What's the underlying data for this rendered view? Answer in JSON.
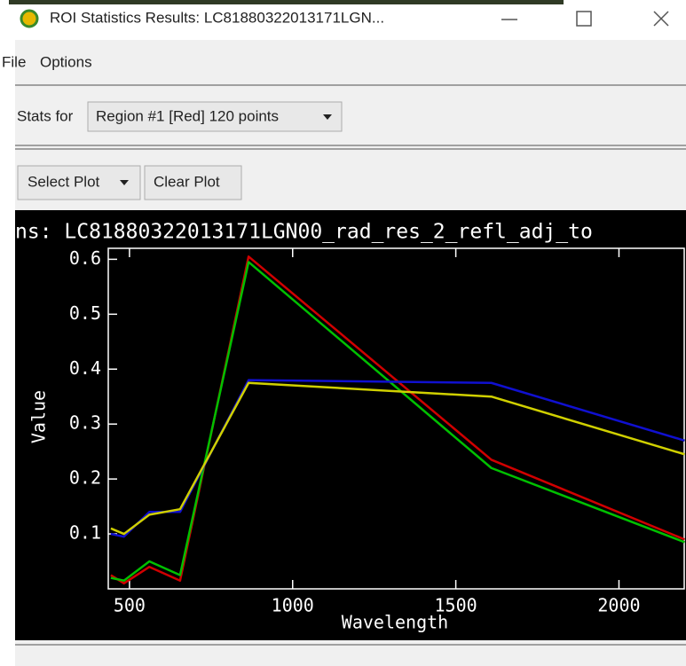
{
  "window": {
    "title": "ROI Statistics Results: LC81880322013171LGN...",
    "menu": [
      "File",
      "Options"
    ],
    "stats_label": "Stats for",
    "region_dropdown": "Region #1 [Red] 120 points",
    "buttons": [
      "Select Plot",
      "Clear Plot"
    ]
  },
  "chart_data": {
    "type": "line",
    "title": "ns: LC81880322013171LGN00_rad_res_2_refl_adj_to",
    "x_label": "Wavelength",
    "y_label": "Value",
    "x": [
      443,
      483,
      561,
      655,
      865,
      1609,
      2201
    ],
    "series": [
      {
        "color": "#d00000",
        "values": [
          0.025,
          0.01,
          0.04,
          0.015,
          0.605,
          0.235,
          0.09
        ]
      },
      {
        "color": "#00c000",
        "values": [
          0.02,
          0.015,
          0.05,
          0.025,
          0.595,
          0.22,
          0.085
        ]
      },
      {
        "color": "#1010d0",
        "values": [
          0.1,
          0.095,
          0.14,
          0.14,
          0.38,
          0.375,
          0.27
        ]
      },
      {
        "color": "#d0d000",
        "values": [
          0.11,
          0.1,
          0.135,
          0.145,
          0.375,
          0.35,
          0.245
        ]
      }
    ],
    "xlim": [
      435,
      2200
    ],
    "ylim": [
      0,
      0.62
    ],
    "xticks": [
      500,
      1000,
      1500,
      2000
    ],
    "yticks": [
      0.1,
      0.2,
      0.3,
      0.4,
      0.5,
      0.6
    ]
  }
}
